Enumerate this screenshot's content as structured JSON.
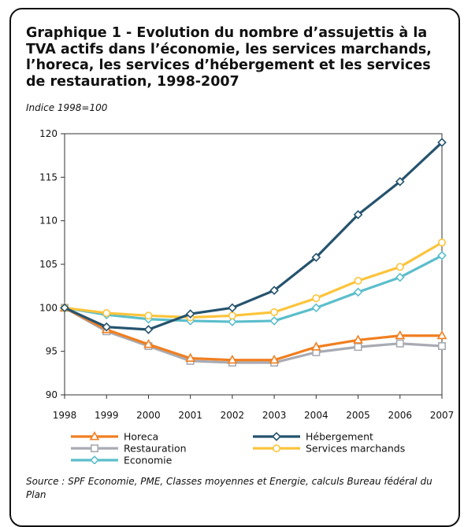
{
  "title": "Graphique 1 - Evolution du nombre d’assujettis à la TVA actifs dans l’économie, les services marchands, l’horeca, les services d’hébergement et les services de restauration, 1998-2007",
  "subtitle": "Indice 1998=100",
  "source": "Source : SPF Economie, PME, Classes moyennes et Energie, calculs Bureau fédéral du Plan",
  "chart_data": {
    "type": "line",
    "title": "",
    "xlabel": "",
    "ylabel": "",
    "x": [
      "1998",
      "1999",
      "2000",
      "2001",
      "2002",
      "2003",
      "2004",
      "2005",
      "2006",
      "2007"
    ],
    "ylim": [
      90,
      120
    ],
    "yticks": [
      "90",
      "95",
      "100",
      "105",
      "110",
      "115",
      "120"
    ],
    "grid": false,
    "legend_position": "bottom",
    "series": [
      {
        "name": "Horeca",
        "color": "#F07F21",
        "marker": "triangle",
        "values": [
          100.0,
          97.5,
          95.8,
          94.2,
          94.0,
          94.0,
          95.5,
          96.3,
          96.8,
          96.8
        ]
      },
      {
        "name": "Hébergement",
        "color": "#25536E",
        "marker": "diamond",
        "values": [
          100.0,
          97.8,
          97.5,
          99.3,
          100.0,
          102.0,
          105.8,
          110.7,
          114.5,
          119.0
        ]
      },
      {
        "name": "Restauration",
        "color": "#A8ABB3",
        "marker": "square",
        "values": [
          100.0,
          97.3,
          95.6,
          93.9,
          93.7,
          93.7,
          94.9,
          95.5,
          95.9,
          95.6
        ]
      },
      {
        "name": "Services marchands",
        "color": "#FCC43C",
        "marker": "circle",
        "values": [
          100.0,
          99.4,
          99.1,
          98.9,
          99.1,
          99.5,
          101.1,
          103.1,
          104.7,
          107.5
        ]
      },
      {
        "name": "Economie",
        "color": "#5BBECB",
        "marker": "diamond",
        "values": [
          100.0,
          99.2,
          98.7,
          98.5,
          98.4,
          98.5,
          100.0,
          101.8,
          103.5,
          106.0
        ]
      }
    ]
  }
}
